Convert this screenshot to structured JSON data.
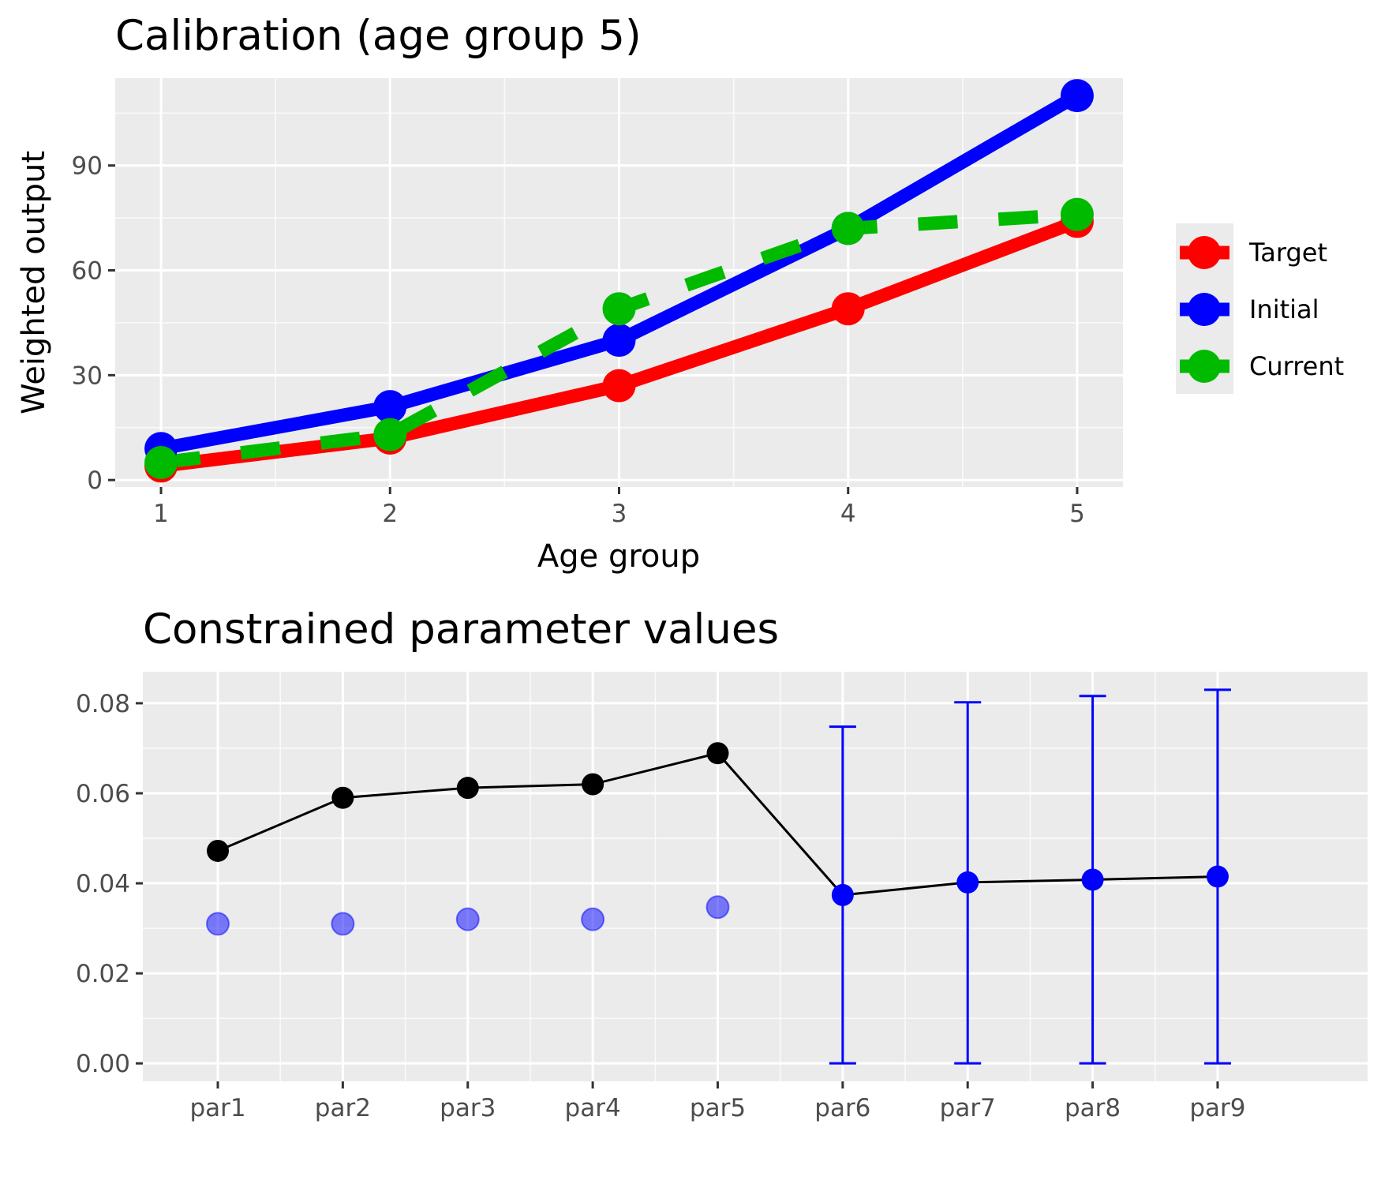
{
  "chart_data": [
    {
      "type": "line",
      "title": "Calibration (age group 5)",
      "xlabel": "Age group",
      "ylabel": "Weighted output",
      "x": [
        1,
        2,
        3,
        4,
        5
      ],
      "xlim": [
        0.8,
        5.2
      ],
      "ylim": [
        -2,
        115
      ],
      "yticks": [
        0,
        30,
        60,
        90
      ],
      "grid": true,
      "legend_position": "right",
      "series": [
        {
          "name": "Target",
          "color": "#ff0000",
          "style": "solid",
          "values": [
            4,
            12,
            27,
            49,
            74
          ]
        },
        {
          "name": "Initial",
          "color": "#0000ff",
          "style": "solid",
          "values": [
            9,
            21,
            40,
            72,
            110
          ]
        },
        {
          "name": "Current",
          "color": "#00ba00",
          "style": "dashed",
          "values": [
            5,
            13,
            49,
            72,
            76
          ]
        }
      ]
    },
    {
      "type": "scatter",
      "title": "Constrained parameter values",
      "xlabel": "",
      "ylabel": "",
      "categories": [
        "par1",
        "par2",
        "par3",
        "par4",
        "par5",
        "par6",
        "par7",
        "par8",
        "par9"
      ],
      "ylim": [
        -0.004,
        0.087
      ],
      "yticks": [
        0.0,
        0.02,
        0.04,
        0.06,
        0.08
      ],
      "grid": true,
      "series": [
        {
          "role": "current",
          "color": "#000000",
          "values": [
            0.0472,
            0.059,
            0.0612,
            0.062,
            0.0689,
            0.0374,
            0.0402,
            0.0408,
            0.0415
          ]
        },
        {
          "role": "initial",
          "color": "#0000ff",
          "opacity": 0.5,
          "values": [
            0.031,
            0.031,
            0.032,
            0.032,
            0.0347,
            null,
            null,
            null,
            null
          ]
        },
        {
          "role": "bounds",
          "color": "#0000ff",
          "lower": [
            null,
            null,
            null,
            null,
            null,
            0,
            0,
            0,
            0
          ],
          "upper": [
            null,
            null,
            null,
            null,
            null,
            0.0748,
            0.0802,
            0.0816,
            0.083
          ]
        }
      ]
    }
  ]
}
